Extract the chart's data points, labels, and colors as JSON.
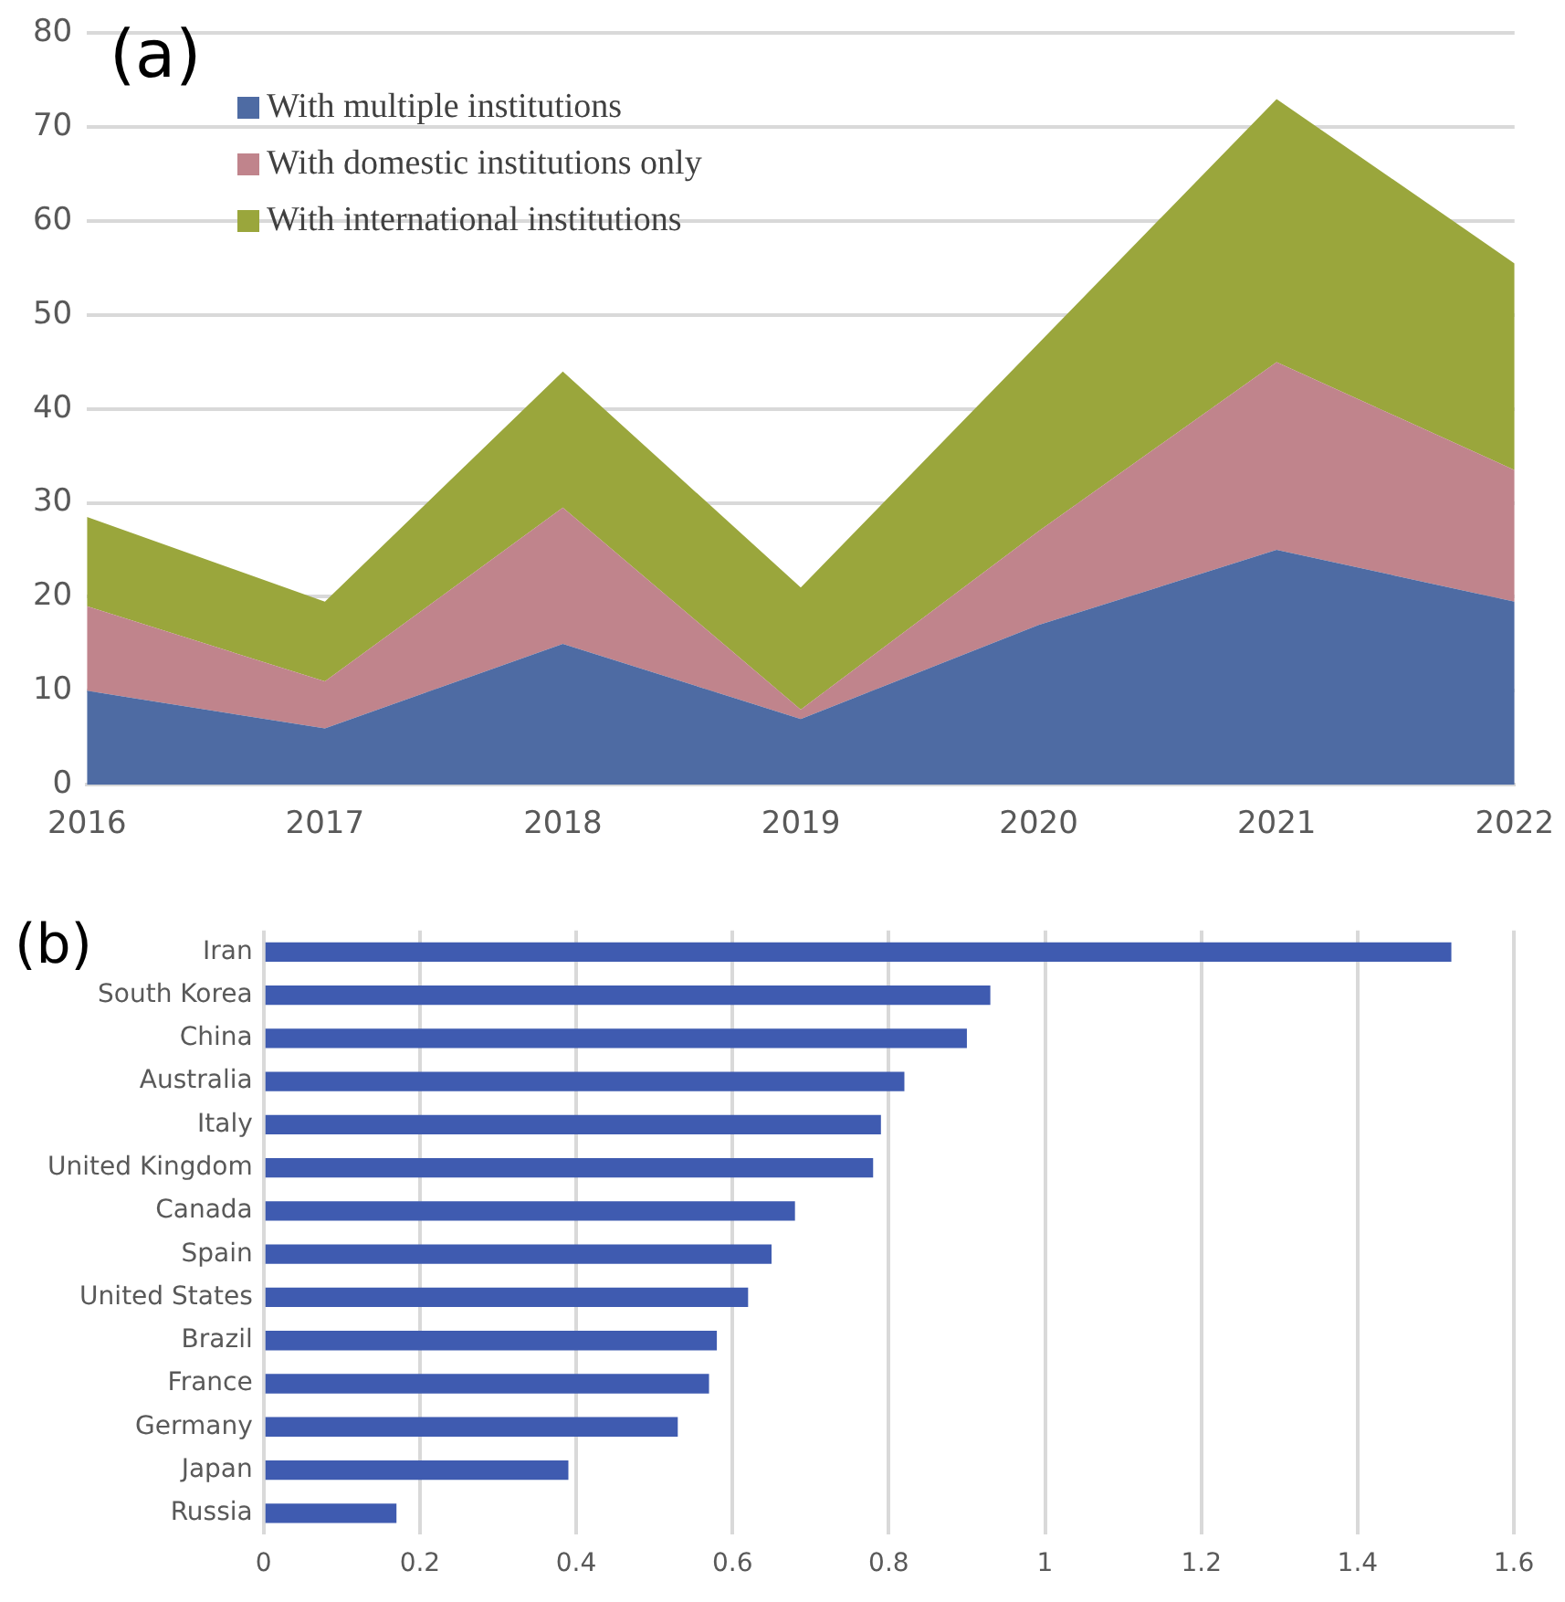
{
  "chart_data": [
    {
      "type": "area",
      "title": "(a)",
      "categories": [
        "2016",
        "2017",
        "2018",
        "2019",
        "2020",
        "2021",
        "2022"
      ],
      "stacked": true,
      "series": [
        {
          "name": "With multiple institutions",
          "color": "#4e6ba3",
          "values": [
            10,
            6,
            15,
            7,
            17,
            25,
            19.5
          ]
        },
        {
          "name": "With domestic institutions only",
          "color": "#c0848c",
          "values": [
            9,
            5,
            14.5,
            1,
            10,
            20,
            14
          ]
        },
        {
          "name": "With international institutions",
          "color": "#9aa63c",
          "values": [
            9.5,
            8.5,
            14.5,
            13,
            20,
            28,
            22
          ]
        }
      ],
      "ylim": [
        0,
        80
      ],
      "yticks": [
        0,
        10,
        20,
        30,
        40,
        50,
        60,
        70,
        80
      ],
      "grid": "y",
      "legend": "top left"
    },
    {
      "type": "bar",
      "title": "(b)",
      "orientation": "horizontal",
      "categories": [
        "Iran",
        "South Korea",
        "China",
        "Australia",
        "Italy",
        "United Kingdom",
        "Canada",
        "Spain",
        "United States",
        "Brazil",
        "France",
        "Germany",
        "Japan",
        "Russia"
      ],
      "values": [
        1.52,
        0.93,
        0.9,
        0.82,
        0.79,
        0.78,
        0.68,
        0.65,
        0.62,
        0.58,
        0.57,
        0.53,
        0.39,
        0.17
      ],
      "color": "#3f5bb0",
      "xlim": [
        0,
        1.6
      ],
      "xticks": [
        0,
        0.2,
        0.4,
        0.6,
        0.8,
        1,
        1.2,
        1.4,
        1.6
      ],
      "grid": "x"
    }
  ]
}
